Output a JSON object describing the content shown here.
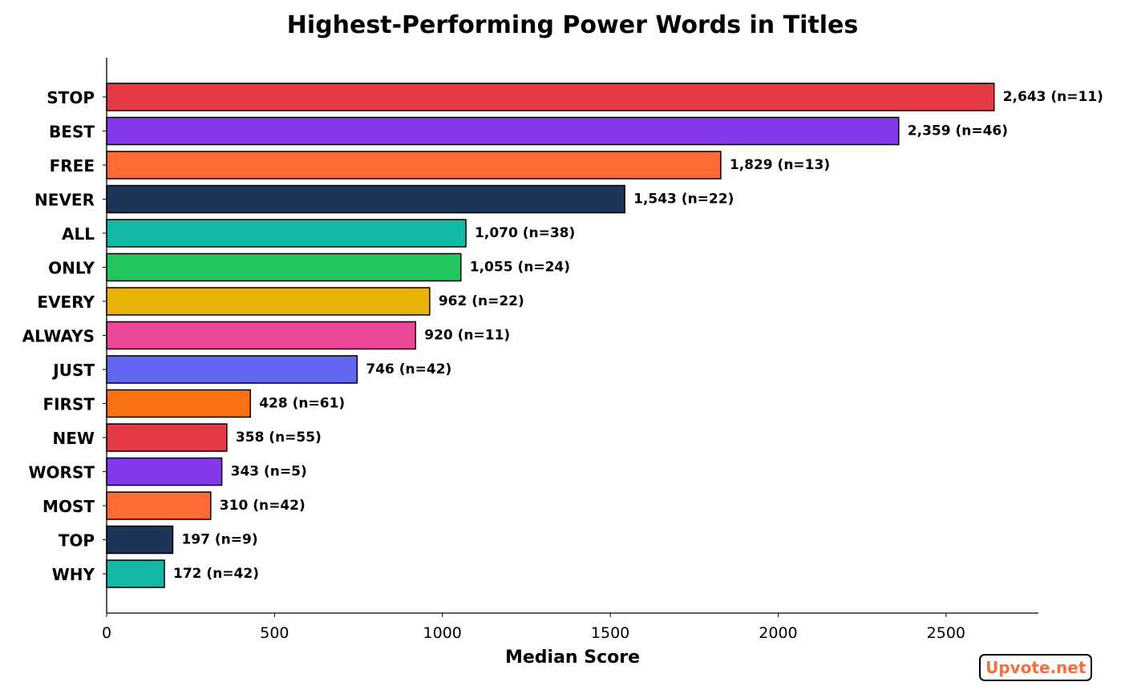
{
  "chart_data": {
    "type": "bar",
    "orientation": "horizontal",
    "title": "Highest-Performing Power Words in Titles",
    "xlabel": "Median Score",
    "ylabel": "",
    "xlim": [
      0,
      2775
    ],
    "xticks": [
      0,
      500,
      1000,
      1500,
      2000,
      2500
    ],
    "grid": false,
    "categories": [
      "STOP",
      "BEST",
      "FREE",
      "NEVER",
      "ALL",
      "ONLY",
      "EVERY",
      "ALWAYS",
      "JUST",
      "FIRST",
      "NEW",
      "WORST",
      "MOST",
      "TOP",
      "WHY"
    ],
    "values": [
      2643,
      2359,
      1829,
      1543,
      1070,
      1055,
      962,
      920,
      746,
      428,
      358,
      343,
      310,
      197,
      172
    ],
    "n": [
      11,
      46,
      13,
      22,
      38,
      24,
      22,
      11,
      42,
      61,
      55,
      5,
      42,
      9,
      42
    ],
    "labels": [
      "2,643 (n=11)",
      "2,359 (n=46)",
      "1,829 (n=13)",
      "1,543 (n=22)",
      "1,070 (n=38)",
      "1,055 (n=24)",
      "962 (n=22)",
      "920 (n=11)",
      "746 (n=42)",
      "428 (n=61)",
      "358 (n=55)",
      "343 (n=5)",
      "310 (n=42)",
      "197 (n=9)",
      "172 (n=42)"
    ],
    "colors": [
      "#e63946",
      "#8338ec",
      "#ff6b35",
      "#1d3557",
      "#14b8a6",
      "#22c55e",
      "#eab308",
      "#ec4899",
      "#6366f1",
      "#f97316",
      "#e63946",
      "#8338ec",
      "#ff6b35",
      "#1d3557",
      "#14b8a6"
    ]
  },
  "watermark": "Upvote.net"
}
